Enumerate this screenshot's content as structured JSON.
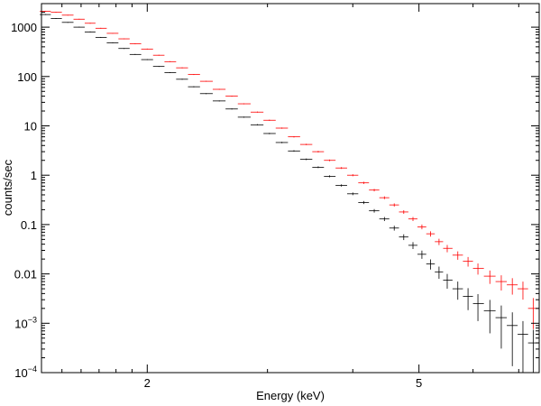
{
  "chart_data": {
    "type": "scatter",
    "xlabel": "Energy (keV)",
    "ylabel": "counts/sec",
    "xscale": "log",
    "yscale": "log",
    "xlim": [
      1.4,
      7.5
    ],
    "ylim": [
      0.0001,
      3000
    ],
    "xticks": [
      {
        "value": 2,
        "label": "2"
      },
      {
        "value": 5,
        "label": "5"
      }
    ],
    "yticks": [
      {
        "value": 0.0001,
        "base": "10",
        "exp": "−4"
      },
      {
        "value": 0.001,
        "base": "10",
        "exp": "−3"
      },
      {
        "value": 0.01,
        "label": "0.01"
      },
      {
        "value": 0.1,
        "label": "0.1"
      },
      {
        "value": 1,
        "label": "1"
      },
      {
        "value": 10,
        "label": "10"
      },
      {
        "value": 100,
        "label": "100"
      },
      {
        "value": 1000,
        "label": "1000"
      }
    ],
    "legend": "none",
    "grid": false,
    "series": [
      {
        "color": "#ff0000",
        "x": [
          1.42,
          1.47,
          1.53,
          1.59,
          1.65,
          1.71,
          1.78,
          1.85,
          1.92,
          2.0,
          2.08,
          2.16,
          2.25,
          2.34,
          2.44,
          2.55,
          2.66,
          2.77,
          2.9,
          3.02,
          3.15,
          3.28,
          3.42,
          3.56,
          3.7,
          3.85,
          4.0,
          4.15,
          4.3,
          4.45,
          4.6,
          4.75,
          4.9,
          5.05,
          5.2,
          5.35,
          5.5,
          5.7,
          5.9,
          6.1,
          6.35,
          6.6,
          6.85,
          7.1,
          7.35
        ],
        "y": [
          2100,
          2000,
          1750,
          1450,
          1200,
          950,
          750,
          580,
          460,
          360,
          270,
          200,
          150,
          110,
          80,
          55,
          40,
          28,
          19,
          13,
          9.0,
          6.0,
          4.2,
          3.0,
          2.0,
          1.4,
          1.0,
          0.7,
          0.5,
          0.35,
          0.25,
          0.18,
          0.13,
          0.09,
          0.065,
          0.045,
          0.033,
          0.024,
          0.018,
          0.013,
          0.009,
          0.007,
          0.006,
          0.005,
          0.002
        ]
      },
      {
        "color": "#000000",
        "x": [
          1.42,
          1.47,
          1.53,
          1.59,
          1.65,
          1.71,
          1.78,
          1.85,
          1.92,
          2.0,
          2.08,
          2.16,
          2.25,
          2.34,
          2.44,
          2.55,
          2.66,
          2.77,
          2.9,
          3.02,
          3.15,
          3.28,
          3.42,
          3.56,
          3.7,
          3.85,
          4.0,
          4.15,
          4.3,
          4.45,
          4.6,
          4.75,
          4.9,
          5.05,
          5.2,
          5.35,
          5.5,
          5.7,
          5.9,
          6.1,
          6.35,
          6.6,
          6.85,
          7.1,
          7.35
        ],
        "y": [
          1800,
          1500,
          1250,
          1000,
          800,
          620,
          480,
          370,
          280,
          220,
          160,
          120,
          88,
          62,
          45,
          32,
          22,
          15,
          10.5,
          7.0,
          4.6,
          3.1,
          2.1,
          1.45,
          0.95,
          0.62,
          0.42,
          0.28,
          0.19,
          0.13,
          0.085,
          0.056,
          0.038,
          0.025,
          0.016,
          0.011,
          0.0075,
          0.005,
          0.0035,
          0.0025,
          0.0018,
          0.0013,
          0.0009,
          0.0006,
          0.0004
        ]
      }
    ]
  }
}
